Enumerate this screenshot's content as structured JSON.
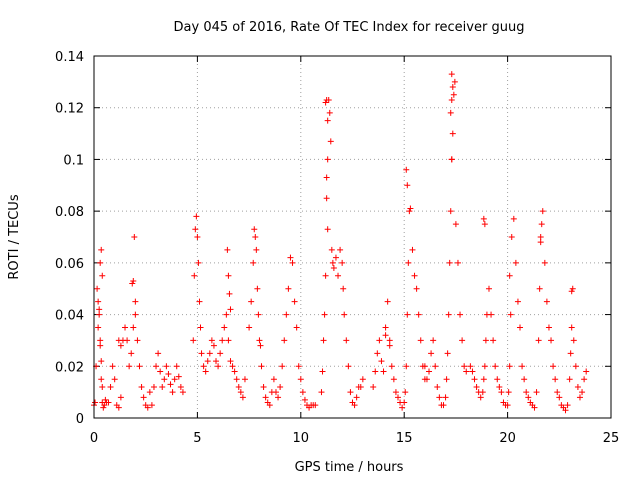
{
  "chart_data": {
    "type": "scatter",
    "title": "Day 045 of 2016, Rate Of TEC Index for receiver guug",
    "xlabel": "GPS time / hours",
    "ylabel": "ROTI / TECUs",
    "xlim": [
      0,
      25
    ],
    "ylim": [
      0,
      0.14
    ],
    "xticks": [
      0,
      5,
      10,
      15,
      20,
      25
    ],
    "yticks": [
      0,
      0.02,
      0.04,
      0.06,
      0.08,
      0.1,
      0.12,
      0.14
    ],
    "xtick_labels": [
      "0",
      "5",
      "10",
      "15",
      "20",
      "25"
    ],
    "ytick_labels": [
      "0",
      "0.02",
      "0.04",
      "0.06",
      "0.08",
      "0.1",
      "0.12",
      "0.14"
    ],
    "grid": true,
    "series": [
      {
        "name": "ROTI",
        "color": "#ff0000",
        "marker": "plus",
        "x": [
          0.0,
          0.05,
          0.1,
          0.15,
          0.2,
          0.25,
          0.3,
          0.35,
          0.4,
          0.45,
          0.5,
          0.55,
          0.6,
          0.3,
          0.35,
          0.4,
          0.2,
          0.25,
          0.3,
          0.35,
          0.4,
          0.7,
          0.8,
          0.9,
          1.0,
          1.1,
          1.2,
          1.3,
          1.4,
          1.5,
          1.6,
          1.7,
          1.8,
          1.9,
          2.0,
          2.1,
          2.2,
          2.3,
          2.4,
          2.5,
          2.6,
          2.7,
          2.8,
          1.85,
          1.9,
          1.95,
          2.0,
          1.2,
          1.3,
          2.9,
          3.0,
          3.1,
          3.2,
          3.3,
          3.4,
          3.5,
          3.6,
          3.7,
          3.8,
          3.9,
          4.0,
          4.1,
          4.2,
          4.3,
          4.8,
          4.85,
          4.9,
          4.95,
          5.0,
          5.05,
          5.1,
          5.15,
          5.2,
          5.3,
          5.4,
          5.5,
          5.6,
          5.7,
          5.8,
          5.9,
          6.0,
          6.1,
          6.2,
          6.3,
          6.4,
          6.5,
          6.6,
          6.7,
          6.8,
          6.9,
          7.0,
          7.1,
          7.2,
          7.3,
          6.45,
          6.5,
          6.55,
          6.6,
          7.5,
          7.6,
          7.7,
          7.75,
          7.8,
          7.85,
          7.9,
          7.95,
          8.0,
          8.05,
          8.1,
          8.2,
          8.3,
          8.4,
          8.5,
          8.6,
          8.7,
          8.8,
          8.9,
          9.0,
          9.1,
          9.2,
          9.3,
          9.4,
          9.5,
          9.6,
          9.7,
          9.8,
          9.9,
          10.0,
          10.1,
          10.2,
          10.3,
          10.4,
          10.5,
          10.6,
          10.7,
          11.0,
          11.05,
          11.1,
          11.15,
          11.2,
          11.25,
          11.3,
          11.35,
          11.4,
          11.45,
          11.5,
          11.55,
          11.6,
          11.7,
          11.8,
          11.9,
          12.0,
          12.05,
          12.1,
          12.2,
          12.3,
          12.4,
          12.5,
          12.6,
          12.7,
          12.8,
          12.9,
          13.0,
          11.25,
          11.3,
          11.2,
          11.3,
          11.25,
          13.5,
          13.6,
          13.7,
          13.8,
          13.9,
          14.0,
          14.1,
          14.2,
          14.3,
          14.4,
          14.5,
          14.6,
          14.7,
          14.8,
          14.9,
          15.0,
          15.05,
          15.1,
          15.15,
          15.2,
          15.25,
          15.3,
          15.4,
          15.5,
          15.6,
          15.7,
          15.8,
          15.9,
          16.0,
          14.1,
          14.3,
          15.1,
          15.15,
          16.0,
          16.1,
          16.2,
          16.3,
          16.4,
          16.5,
          16.6,
          16.7,
          16.8,
          16.9,
          17.0,
          17.05,
          17.1,
          17.15,
          17.2,
          17.25,
          17.3,
          17.35,
          17.4,
          17.45,
          17.5,
          17.6,
          17.7,
          17.8,
          17.9,
          18.0,
          17.25,
          17.3,
          17.3,
          17.35,
          17.3,
          18.2,
          18.3,
          18.4,
          18.5,
          18.6,
          18.7,
          18.8,
          18.85,
          18.9,
          18.95,
          19.0,
          19.1,
          19.2,
          19.3,
          19.4,
          19.5,
          19.6,
          19.7,
          19.8,
          19.9,
          18.85,
          18.9,
          20.0,
          20.05,
          20.1,
          20.15,
          20.2,
          20.3,
          20.4,
          20.5,
          20.6,
          20.7,
          20.8,
          20.9,
          21.0,
          21.1,
          21.2,
          21.3,
          21.4,
          21.5,
          21.55,
          21.6,
          21.65,
          21.7,
          21.8,
          21.9,
          22.0,
          22.1,
          22.2,
          22.3,
          22.4,
          22.5,
          20.1,
          21.6,
          22.6,
          22.7,
          22.8,
          22.9,
          23.0,
          23.05,
          23.1,
          23.15,
          23.2,
          23.3,
          23.4,
          23.5,
          23.6,
          23.7,
          23.8,
          23.1
        ],
        "y": [
          0.005,
          0.006,
          0.02,
          0.05,
          0.035,
          0.042,
          0.03,
          0.015,
          0.006,
          0.004,
          0.005,
          0.007,
          0.006,
          0.06,
          0.065,
          0.055,
          0.045,
          0.04,
          0.028,
          0.022,
          0.012,
          0.006,
          0.012,
          0.02,
          0.015,
          0.005,
          0.004,
          0.008,
          0.03,
          0.035,
          0.03,
          0.02,
          0.025,
          0.035,
          0.04,
          0.03,
          0.02,
          0.012,
          0.008,
          0.005,
          0.004,
          0.01,
          0.005,
          0.052,
          0.053,
          0.07,
          0.045,
          0.03,
          0.028,
          0.012,
          0.02,
          0.025,
          0.018,
          0.012,
          0.015,
          0.02,
          0.017,
          0.013,
          0.01,
          0.015,
          0.02,
          0.016,
          0.012,
          0.01,
          0.03,
          0.055,
          0.073,
          0.078,
          0.07,
          0.06,
          0.045,
          0.035,
          0.025,
          0.02,
          0.018,
          0.022,
          0.025,
          0.03,
          0.028,
          0.022,
          0.02,
          0.025,
          0.03,
          0.035,
          0.04,
          0.03,
          0.022,
          0.02,
          0.018,
          0.015,
          0.012,
          0.01,
          0.008,
          0.015,
          0.065,
          0.055,
          0.048,
          0.042,
          0.035,
          0.045,
          0.06,
          0.073,
          0.07,
          0.065,
          0.05,
          0.04,
          0.03,
          0.028,
          0.02,
          0.012,
          0.008,
          0.006,
          0.005,
          0.01,
          0.015,
          0.01,
          0.008,
          0.012,
          0.02,
          0.03,
          0.04,
          0.05,
          0.062,
          0.06,
          0.045,
          0.035,
          0.02,
          0.015,
          0.01,
          0.007,
          0.005,
          0.004,
          0.005,
          0.005,
          0.005,
          0.01,
          0.018,
          0.03,
          0.04,
          0.055,
          0.085,
          0.1,
          0.123,
          0.118,
          0.107,
          0.065,
          0.06,
          0.058,
          0.062,
          0.055,
          0.065,
          0.06,
          0.05,
          0.04,
          0.03,
          0.02,
          0.01,
          0.006,
          0.005,
          0.008,
          0.012,
          0.012,
          0.015,
          0.093,
          0.073,
          0.122,
          0.115,
          0.123,
          0.012,
          0.018,
          0.025,
          0.03,
          0.022,
          0.018,
          0.035,
          0.045,
          0.03,
          0.02,
          0.015,
          0.01,
          0.008,
          0.006,
          0.004,
          0.006,
          0.01,
          0.02,
          0.04,
          0.06,
          0.08,
          0.081,
          0.065,
          0.055,
          0.05,
          0.04,
          0.03,
          0.02,
          0.015,
          0.032,
          0.028,
          0.096,
          0.09,
          0.02,
          0.015,
          0.018,
          0.025,
          0.03,
          0.02,
          0.012,
          0.008,
          0.005,
          0.005,
          0.008,
          0.015,
          0.025,
          0.04,
          0.06,
          0.08,
          0.1,
          0.11,
          0.125,
          0.13,
          0.075,
          0.06,
          0.04,
          0.03,
          0.02,
          0.018,
          0.118,
          0.123,
          0.1,
          0.128,
          0.133,
          0.02,
          0.018,
          0.015,
          0.012,
          0.01,
          0.008,
          0.01,
          0.015,
          0.02,
          0.03,
          0.04,
          0.05,
          0.04,
          0.03,
          0.02,
          0.015,
          0.012,
          0.01,
          0.006,
          0.005,
          0.077,
          0.075,
          0.005,
          0.01,
          0.02,
          0.04,
          0.07,
          0.077,
          0.06,
          0.045,
          0.035,
          0.02,
          0.015,
          0.01,
          0.008,
          0.006,
          0.005,
          0.004,
          0.01,
          0.03,
          0.05,
          0.07,
          0.075,
          0.08,
          0.06,
          0.045,
          0.035,
          0.03,
          0.02,
          0.015,
          0.01,
          0.008,
          0.055,
          0.068,
          0.005,
          0.004,
          0.003,
          0.005,
          0.015,
          0.025,
          0.035,
          0.05,
          0.03,
          0.02,
          0.012,
          0.008,
          0.01,
          0.015,
          0.018,
          0.049
        ]
      }
    ]
  }
}
